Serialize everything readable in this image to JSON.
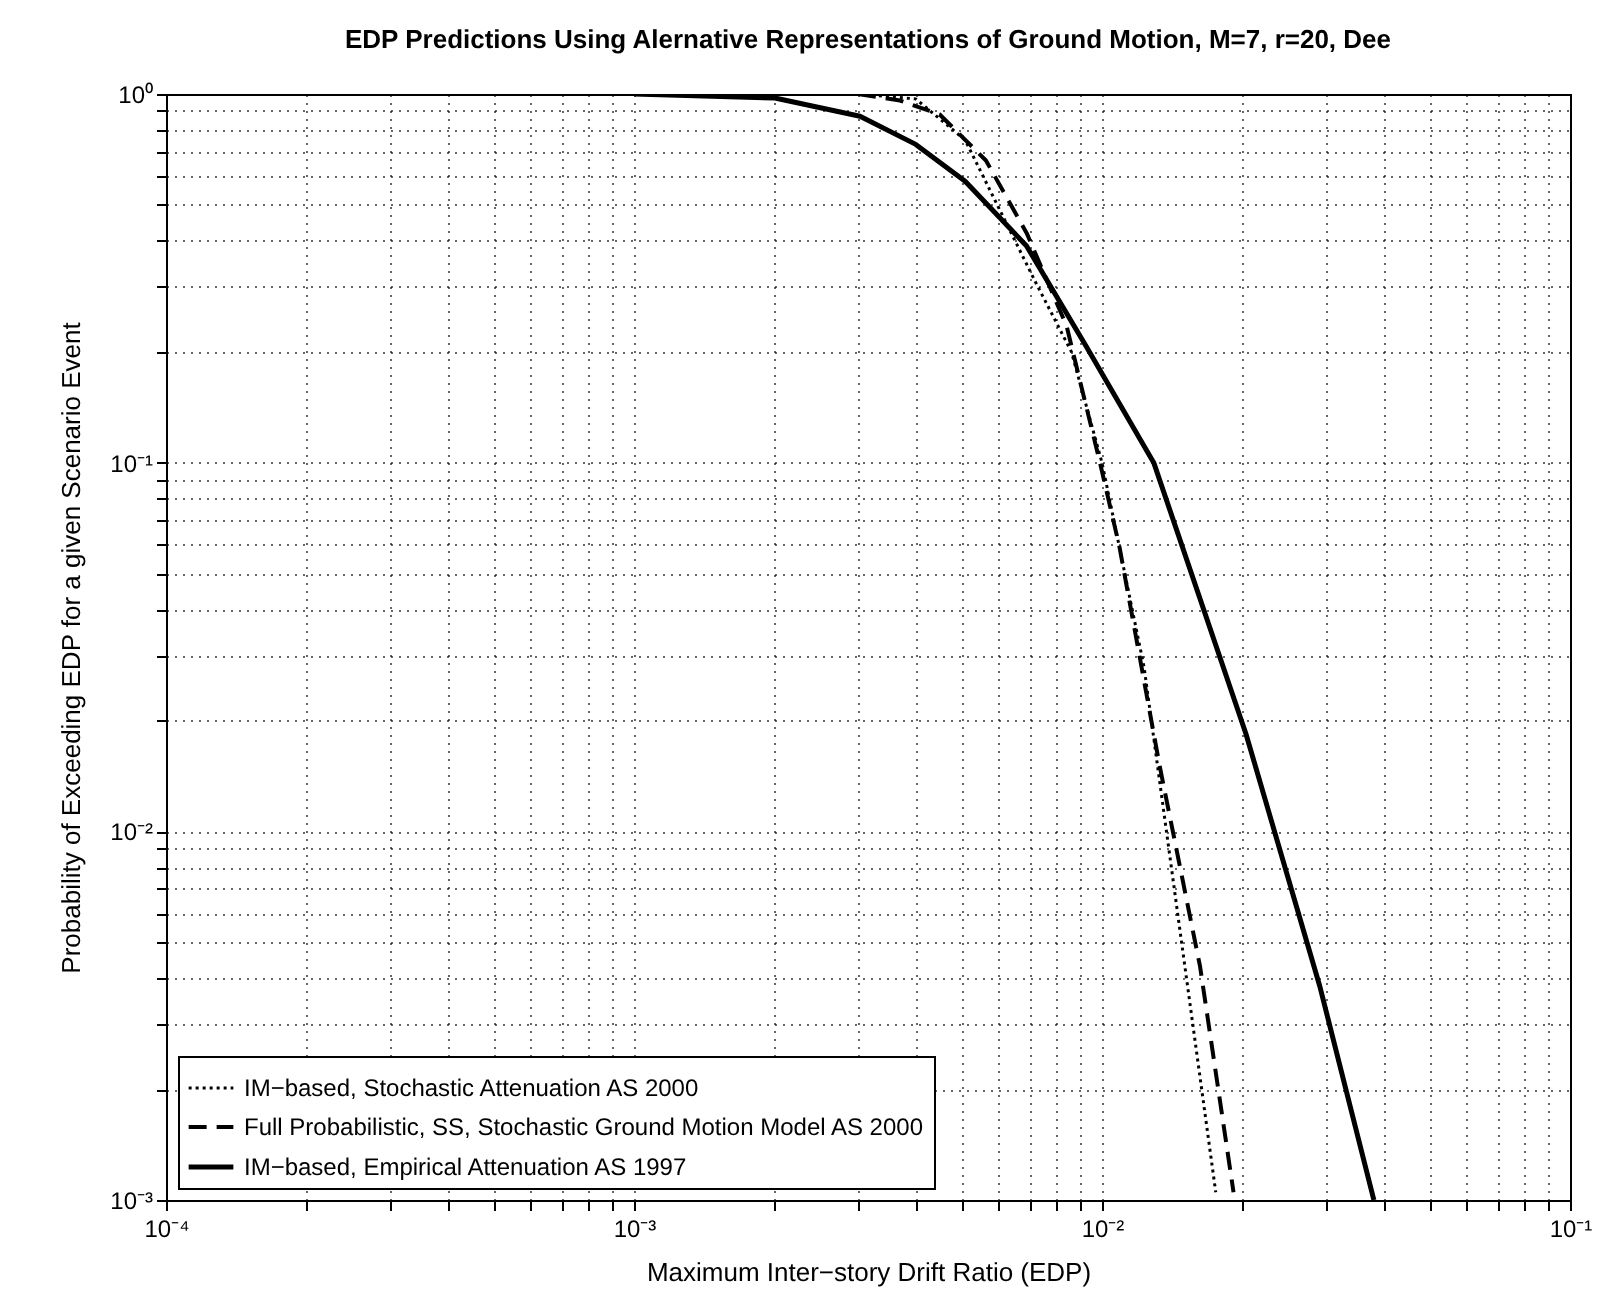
{
  "chart_data": {
    "type": "line",
    "title": "EDP Predictions Using Alernative Representations of Ground Motion, M=7, r=20, Dee",
    "xlabel": "Maximum Inter−story Drift Ratio (EDP)",
    "ylabel": "Probability of Exceeding EDP for a given Scenario Event",
    "log": "xy",
    "grid": true,
    "legend": "bottom left",
    "xlim": [
      0.0001,
      0.1
    ],
    "ylim": [
      0.001,
      1
    ],
    "xticks": [
      {
        "value": 0.0001,
        "label": "10⁻⁴"
      },
      {
        "value": 0.0002,
        "label": null
      },
      {
        "value": 0.0003,
        "label": null
      },
      {
        "value": 0.0004,
        "label": null
      },
      {
        "value": 0.0005,
        "label": null
      },
      {
        "value": 0.0006,
        "label": null
      },
      {
        "value": 0.0007,
        "label": null
      },
      {
        "value": 0.0008,
        "label": null
      },
      {
        "value": 0.0009,
        "label": null
      },
      {
        "value": 0.001,
        "label": "10⁻³"
      },
      {
        "value": 0.002,
        "label": null
      },
      {
        "value": 0.003,
        "label": null
      },
      {
        "value": 0.004,
        "label": null
      },
      {
        "value": 0.005,
        "label": null
      },
      {
        "value": 0.006,
        "label": null
      },
      {
        "value": 0.007,
        "label": null
      },
      {
        "value": 0.008,
        "label": null
      },
      {
        "value": 0.009,
        "label": null
      },
      {
        "value": 0.01,
        "label": "10⁻²"
      },
      {
        "value": 0.02,
        "label": null
      },
      {
        "value": 0.03,
        "label": null
      },
      {
        "value": 0.04,
        "label": null
      },
      {
        "value": 0.05,
        "label": null
      },
      {
        "value": 0.06,
        "label": null
      },
      {
        "value": 0.07,
        "label": null
      },
      {
        "value": 0.08,
        "label": null
      },
      {
        "value": 0.09,
        "label": null
      },
      {
        "value": 0.1,
        "label": "10⁻¹"
      }
    ],
    "yticks": [
      {
        "value": 0.001,
        "label": "10⁻³"
      },
      {
        "value": 0.002,
        "label": null
      },
      {
        "value": 0.003,
        "label": null
      },
      {
        "value": 0.004,
        "label": null
      },
      {
        "value": 0.005,
        "label": null
      },
      {
        "value": 0.006,
        "label": null
      },
      {
        "value": 0.007,
        "label": null
      },
      {
        "value": 0.008,
        "label": null
      },
      {
        "value": 0.009,
        "label": null
      },
      {
        "value": 0.01,
        "label": "10⁻²"
      },
      {
        "value": 0.02,
        "label": null
      },
      {
        "value": 0.03,
        "label": null
      },
      {
        "value": 0.04,
        "label": null
      },
      {
        "value": 0.05,
        "label": null
      },
      {
        "value": 0.06,
        "label": null
      },
      {
        "value": 0.07,
        "label": null
      },
      {
        "value": 0.08,
        "label": null
      },
      {
        "value": 0.09,
        "label": null
      },
      {
        "value": 0.1,
        "label": "10⁻¹"
      },
      {
        "value": 0.2,
        "label": null
      },
      {
        "value": 0.3,
        "label": null
      },
      {
        "value": 0.4,
        "label": null
      },
      {
        "value": 0.5,
        "label": null
      },
      {
        "value": 0.6,
        "label": null
      },
      {
        "value": 0.7,
        "label": null
      },
      {
        "value": 0.8,
        "label": null
      },
      {
        "value": 0.9,
        "label": null
      },
      {
        "value": 1,
        "label": "10⁰"
      }
    ],
    "series": [
      {
        "name": "IM−based, Stochastic Attenuation AS 2000",
        "color": "#000000",
        "line_style": "dotted",
        "x": [
          0.001,
          0.002,
          0.003,
          0.004,
          0.0051,
          0.0072,
          0.0086,
          0.01,
          0.0123,
          0.0147,
          0.0175
        ],
        "values": [
          1,
          1,
          1,
          0.97,
          0.75,
          0.31,
          0.2,
          0.1,
          0.0279,
          0.0053,
          0.00105
        ]
      },
      {
        "name": "Full Probabilistic, SS, Stochastic Ground Motion Model AS 2000",
        "color": "#000000",
        "line_style": "dashed",
        "x": [
          0.001,
          0.002,
          0.003,
          0.0037,
          0.0045,
          0.00565,
          0.0069,
          0.0084,
          0.0099,
          0.0109,
          0.0133,
          0.0162,
          0.0191
        ],
        "values": [
          1,
          1,
          1,
          0.96,
          0.88,
          0.66,
          0.42,
          0.235,
          0.1,
          0.059,
          0.0149,
          0.0043,
          0.00105
        ]
      },
      {
        "name": "IM−based, Empirical Attenuation AS 1997",
        "color": "#000000",
        "line_style": "solid",
        "x": [
          0.001,
          0.002,
          0.00304,
          0.004,
          0.0051,
          0.0069,
          0.00925,
          0.0129,
          0.0203,
          0.0292,
          0.0381
        ],
        "values": [
          1,
          0.975,
          0.87,
          0.73,
          0.58,
          0.387,
          0.207,
          0.1,
          0.0184,
          0.0038,
          0.001
        ]
      }
    ]
  }
}
